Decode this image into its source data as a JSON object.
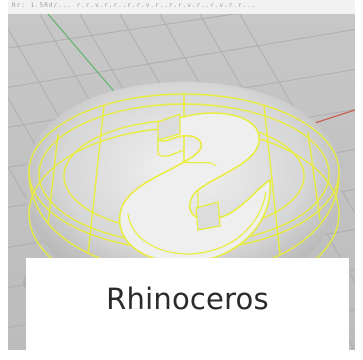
{
  "viewport": {
    "toolbar_text": "Rr: 1.5Rd/... r.r.v.r.r..r.r.v.r..r.r.v.r..r.v.r.r..."
  },
  "card": {
    "title": "Rhinoceros"
  },
  "colors": {
    "viewport_background": "#bdbdbd",
    "grid_line": "#aeb0b3",
    "model_surface": "#d9d9d9",
    "wireframe_highlight": "#e8ec3a",
    "axis_green": "#5fb36a",
    "axis_red": "#c45a4a",
    "panel_background": "#ffffff",
    "title_text": "#2b2b2b"
  }
}
